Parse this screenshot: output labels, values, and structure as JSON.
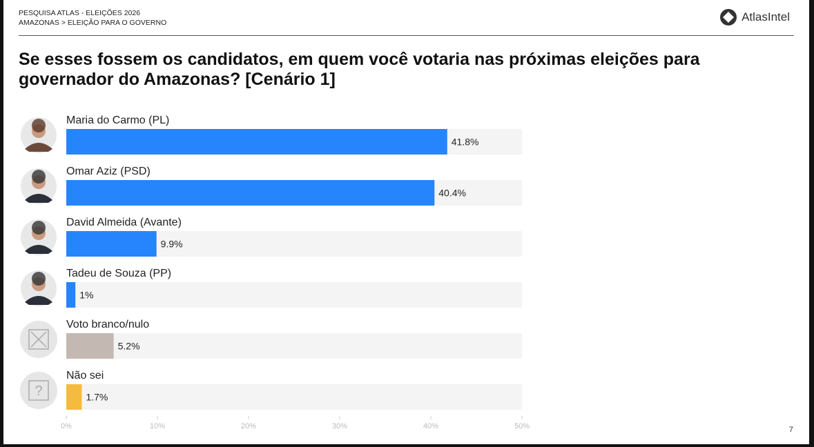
{
  "header": {
    "line1": "PESQUISA ATLAS - ELEIÇÕES 2026",
    "line2": "AMAZONAS > ELEIÇÃO PARA O GOVERNO"
  },
  "logo": {
    "text": "AtlasIntel",
    "icon": "atlas-diamond-logo-icon"
  },
  "page_number": "7",
  "chart_data": {
    "type": "bar",
    "orientation": "horizontal",
    "title": "Se esses fossem os candidatos, em quem você votaria nas próximas eleições para governador do Amazonas? [Cenário 1]",
    "categories": [
      "Maria do Carmo (PL)",
      "Omar Aziz (PSD)",
      "David Almeida (Avante)",
      "Tadeu de Souza (PP)",
      "Voto branco/nulo",
      "Não sei"
    ],
    "values": [
      41.8,
      40.4,
      9.9,
      1,
      5.2,
      1.7
    ],
    "value_labels": [
      "41.8%",
      "40.4%",
      "9.9%",
      "1%",
      "5.2%",
      "1.7%"
    ],
    "colors": [
      "#2684fc",
      "#2684fc",
      "#2684fc",
      "#2684fc",
      "#c4b8b3",
      "#f5bb3e"
    ],
    "icons": [
      "candidate-photo",
      "candidate-photo",
      "candidate-photo",
      "candidate-photo",
      "x-box-icon",
      "question-box-icon"
    ],
    "track_color": "#f4f4f4",
    "xlim": [
      0,
      50
    ],
    "xticks": [
      "0%",
      "10%",
      "20%",
      "30%",
      "40%",
      "50%"
    ],
    "grid": false
  }
}
